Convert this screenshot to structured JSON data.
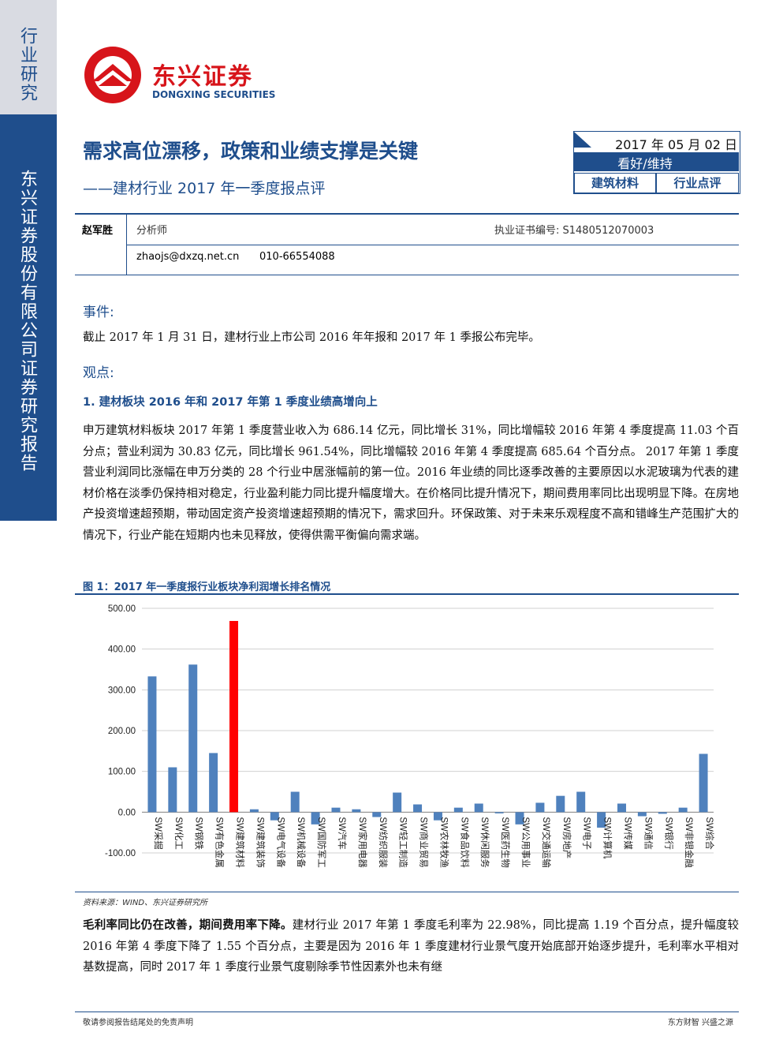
{
  "sidebar": {
    "category": "行业研究",
    "company": "东兴证券股份有限公司证券研究报告"
  },
  "logo": {
    "name": "东兴证券",
    "english": "DONGXING SECURITIES"
  },
  "header": {
    "title": "需求高位漂移，政策和业绩支撑是关键",
    "subtitle": "——建材行业 2017 年一季度报点评",
    "date": "2017 年 05 月 02 日",
    "rating": "看好/维持",
    "sector": "建筑材料",
    "report_type": "行业点评"
  },
  "analyst": {
    "name": "赵军胜",
    "role": "分析师",
    "license": "执业证书编号: S1480512070003",
    "email": "zhaojs@dxzq.net.cn",
    "phone": "010-66554088"
  },
  "sections": {
    "event_heading": "事件:",
    "event_text": "截止 2017 年 1 月 31 日，建材行业上市公司 2016 年年报和 2017 年 1 季报公布完毕。",
    "view_heading": "观点:",
    "point1_heading": "1. 建材板块 2016 年和 2017 年第 1 季度业绩高增向上",
    "point1_text": "申万建筑材料板块 2017 年第 1 季度营业收入为 686.14 亿元，同比增长 31%，同比增幅较 2016 年第 4 季度提高 11.03 个百分点；营业利润为 30.83 亿元，同比增长 961.54%，同比增幅较 2016 年第 4 季度提高 685.64 个百分点。 2017 年第 1 季度营业利润同比涨幅在申万分类的 28 个行业中居涨幅前的第一位。2016 年业绩的同比逐季改善的主要原因以水泥玻璃为代表的建材价格在淡季仍保持相对稳定，行业盈利能力同比提升幅度增大。在价格同比提升情况下，期间费用率同比出现明显下降。在房地产投资增速超预期，带动固定资产投资增速超预期的情况下，需求回升。环保政策、对于未来乐观程度不高和错峰生产范围扩大的情况下，行业产能在短期内也未见释放，使得供需平衡偏向需求端。"
  },
  "chart_data": {
    "type": "bar",
    "title": "图 1：2017 年一季度报行业板块净利润增长排名情况",
    "categories": [
      "SW采掘",
      "SW化工",
      "SW钢铁",
      "SW有色金属",
      "SW建筑材料",
      "SW建筑装饰",
      "SW电气设备",
      "SW机械设备",
      "SW国防军工",
      "SW汽车",
      "SW家用电器",
      "SW纺织服装",
      "SW轻工制造",
      "SW商业贸易",
      "SW农林牧渔",
      "SW食品饮料",
      "SW休闲服务",
      "SW医药生物",
      "SW公用事业",
      "SW交通运输",
      "SW房地产",
      "SW电子",
      "SW计算机",
      "SW传媒",
      "SW通信",
      "SW银行",
      "SW非银金融",
      "SW综合"
    ],
    "values": [
      333,
      110,
      362,
      145,
      469,
      7,
      -20,
      50,
      -30,
      11,
      7,
      -12,
      48,
      19,
      -20,
      11,
      21,
      -3,
      -30,
      23,
      40,
      50,
      -38,
      21,
      -10,
      -4,
      11,
      143
    ],
    "colors": [
      "#4f81bd",
      "#4f81bd",
      "#4f81bd",
      "#4f81bd",
      "#ff0000",
      "#4f81bd",
      "#4f81bd",
      "#4f81bd",
      "#4f81bd",
      "#4f81bd",
      "#4f81bd",
      "#4f81bd",
      "#4f81bd",
      "#4f81bd",
      "#4f81bd",
      "#4f81bd",
      "#4f81bd",
      "#4f81bd",
      "#4f81bd",
      "#4f81bd",
      "#4f81bd",
      "#4f81bd",
      "#4f81bd",
      "#4f81bd",
      "#4f81bd",
      "#4f81bd",
      "#4f81bd",
      "#4f81bd"
    ],
    "ylim": [
      -100,
      500
    ],
    "yticks": [
      {
        "value": -100,
        "label": "-100.00"
      },
      {
        "value": 0,
        "label": "0.00"
      },
      {
        "value": 100,
        "label": "100.00"
      },
      {
        "value": 200,
        "label": "200.00"
      },
      {
        "value": 300,
        "label": "300.00"
      },
      {
        "value": 400,
        "label": "400.00"
      },
      {
        "value": 500,
        "label": "500.00"
      }
    ],
    "grid": true
  },
  "source": "资料来源：WIND、东兴证券研究所",
  "closing": {
    "lead": "毛利率同比仍在改善，期间费用率下降。",
    "text": "建材行业 2017 年第 1 季度毛利率为 22.98%，同比提高 1.19 个百分点，提升幅度较 2016 年第 4 季度下降了 1.55 个百分点，主要是因为 2016 年 1 季度建材行业景气度开始底部开始逐步提升，毛利率水平相对基数提高，同时 2017 年 1 季度行业景气度剔除季节性因素外也未有继"
  },
  "footer": {
    "left": "敬请参阅报告结尾处的免责声明",
    "right": "东方财智 兴盛之源"
  }
}
